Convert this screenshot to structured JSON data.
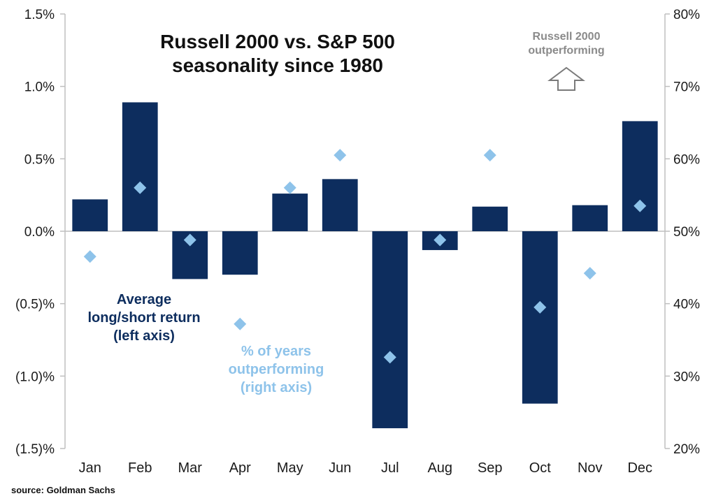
{
  "chart_data": {
    "type": "bar",
    "title_lines": [
      "Russell 2000 vs. S&P 500",
      "seasonality since 1980"
    ],
    "categories": [
      "Jan",
      "Feb",
      "Mar",
      "Apr",
      "May",
      "Jun",
      "Jul",
      "Aug",
      "Sep",
      "Oct",
      "Nov",
      "Dec"
    ],
    "series": [
      {
        "name": "Average long/short return (left axis)",
        "axis": "left",
        "kind": "bar",
        "values": [
          0.22,
          0.89,
          -0.33,
          -0.3,
          0.26,
          0.36,
          -1.36,
          -0.13,
          0.17,
          -1.19,
          0.18,
          0.76
        ]
      },
      {
        "name": "% of years outperforming (right axis)",
        "axis": "right",
        "kind": "scatter",
        "values": [
          46.5,
          56,
          48.8,
          37.2,
          56,
          60.5,
          32.6,
          48.8,
          60.5,
          39.5,
          44.2,
          53.5
        ]
      }
    ],
    "left_axis": {
      "ylim": [
        -1.5,
        1.5
      ],
      "ticks": [
        1.5,
        1.0,
        0.5,
        0.0,
        -0.5,
        -1.0,
        -1.5
      ],
      "tick_labels": [
        "1.5%",
        "1.0%",
        "0.5%",
        "0.0%",
        "(0.5)%",
        "(1.0)%",
        "(1.5)%"
      ]
    },
    "right_axis": {
      "ylim": [
        20,
        80
      ],
      "ticks": [
        80,
        70,
        60,
        50,
        40,
        30,
        20
      ],
      "tick_labels": [
        "80%",
        "70%",
        "60%",
        "50%",
        "40%",
        "30%",
        "20%"
      ]
    },
    "annotations": {
      "bar_label": [
        "Average",
        "long/short return",
        "(left axis)"
      ],
      "diamond_label": [
        "% of years",
        "outperforming",
        "(right axis)"
      ],
      "arrow_label": [
        "Russell 2000",
        "outperforming"
      ]
    },
    "colors": {
      "bar": "#0d2d5e",
      "diamond": "#8ec3ea",
      "arrow_text": "#8a8a8a",
      "axis": "#bfbfbf"
    }
  },
  "source": "source: Goldman Sachs"
}
